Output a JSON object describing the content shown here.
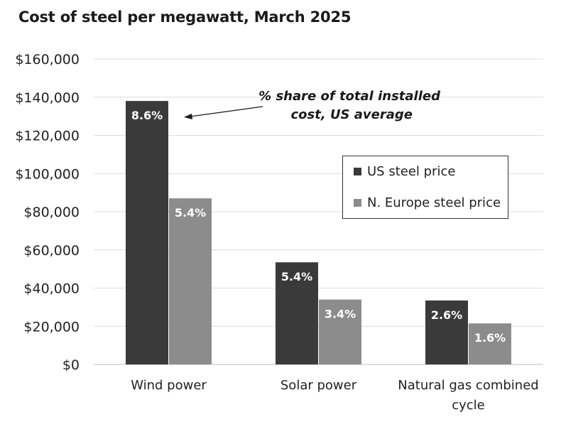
{
  "chart_data": {
    "type": "bar",
    "title": "Cost of steel per megawatt, March 2025",
    "categories": [
      "Wind power",
      "Solar power",
      "Natural gas combined cycle"
    ],
    "category_lines": [
      [
        "Wind power"
      ],
      [
        "Solar power"
      ],
      [
        "Natural gas combined",
        "cycle"
      ]
    ],
    "series": [
      {
        "name": "US steel price",
        "color": "#3a3a3a",
        "values": [
          138000,
          53500,
          33500
        ],
        "labels": [
          "8.6%",
          "5.4%",
          "2.6%"
        ]
      },
      {
        "name": "N. Europe steel price",
        "color": "#8c8c8c",
        "values": [
          87000,
          34000,
          21500
        ],
        "labels": [
          "5.4%",
          "3.4%",
          "1.6%"
        ]
      }
    ],
    "ylim": [
      0,
      160000
    ],
    "yticks": [
      0,
      20000,
      40000,
      60000,
      80000,
      100000,
      120000,
      140000,
      160000
    ],
    "ytick_labels": [
      "$0",
      "$20,000",
      "$40,000",
      "$60,000",
      "$80,000",
      "$100,000",
      "$120,000",
      "$140,000",
      "$160,000"
    ],
    "annotation": [
      "% share of total installed",
      "cost, US average"
    ],
    "legend_position": "right",
    "grid": true
  }
}
